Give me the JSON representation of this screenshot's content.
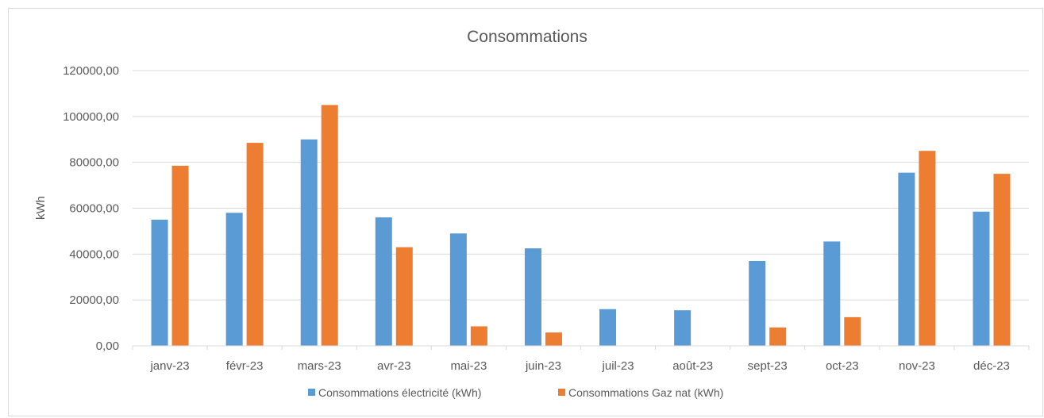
{
  "chart_data": {
    "type": "bar",
    "title": "Consommations",
    "xlabel": "",
    "ylabel": "kWh",
    "ylim": [
      0,
      120000
    ],
    "yticks": [
      "0,00",
      "20000,00",
      "40000,00",
      "60000,00",
      "80000,00",
      "100000,00",
      "120000,00"
    ],
    "categories": [
      "janv-23",
      "févr-23",
      "mars-23",
      "avr-23",
      "mai-23",
      "juin-23",
      "juil-23",
      "août-23",
      "sept-23",
      "oct-23",
      "nov-23",
      "déc-23"
    ],
    "series": [
      {
        "name": "Consommations électricité (kWh)",
        "color": "#5b9bd5",
        "values": [
          55000,
          58000,
          90000,
          56000,
          49000,
          42500,
          16000,
          15500,
          37000,
          45500,
          75500,
          58500
        ]
      },
      {
        "name": "Consommations Gaz nat (kWh)",
        "color": "#ed7d31",
        "values": [
          78500,
          88500,
          105000,
          43000,
          8500,
          5800,
          0,
          0,
          8000,
          12500,
          85000,
          75000
        ]
      }
    ],
    "grid": true,
    "legend_position": "bottom"
  }
}
